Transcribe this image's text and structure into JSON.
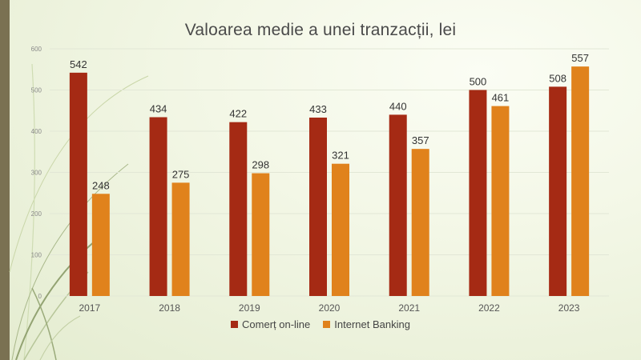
{
  "chart_data": {
    "type": "bar",
    "title": "Valoarea medie a unei tranzacții, lei",
    "categories": [
      "2017",
      "2018",
      "2019",
      "2020",
      "2021",
      "2022",
      "2023"
    ],
    "series": [
      {
        "name": "Comerț on-line",
        "color": "#a52a14",
        "values": [
          542,
          434,
          422,
          433,
          440,
          500,
          508
        ]
      },
      {
        "name": "Internet Banking",
        "color": "#e0821c",
        "values": [
          248,
          275,
          298,
          321,
          357,
          461,
          557
        ]
      }
    ],
    "ylim": [
      0,
      600
    ],
    "yticks": [
      0,
      100,
      200,
      300,
      400,
      500,
      600
    ],
    "grid": true,
    "legend": "bottom"
  }
}
